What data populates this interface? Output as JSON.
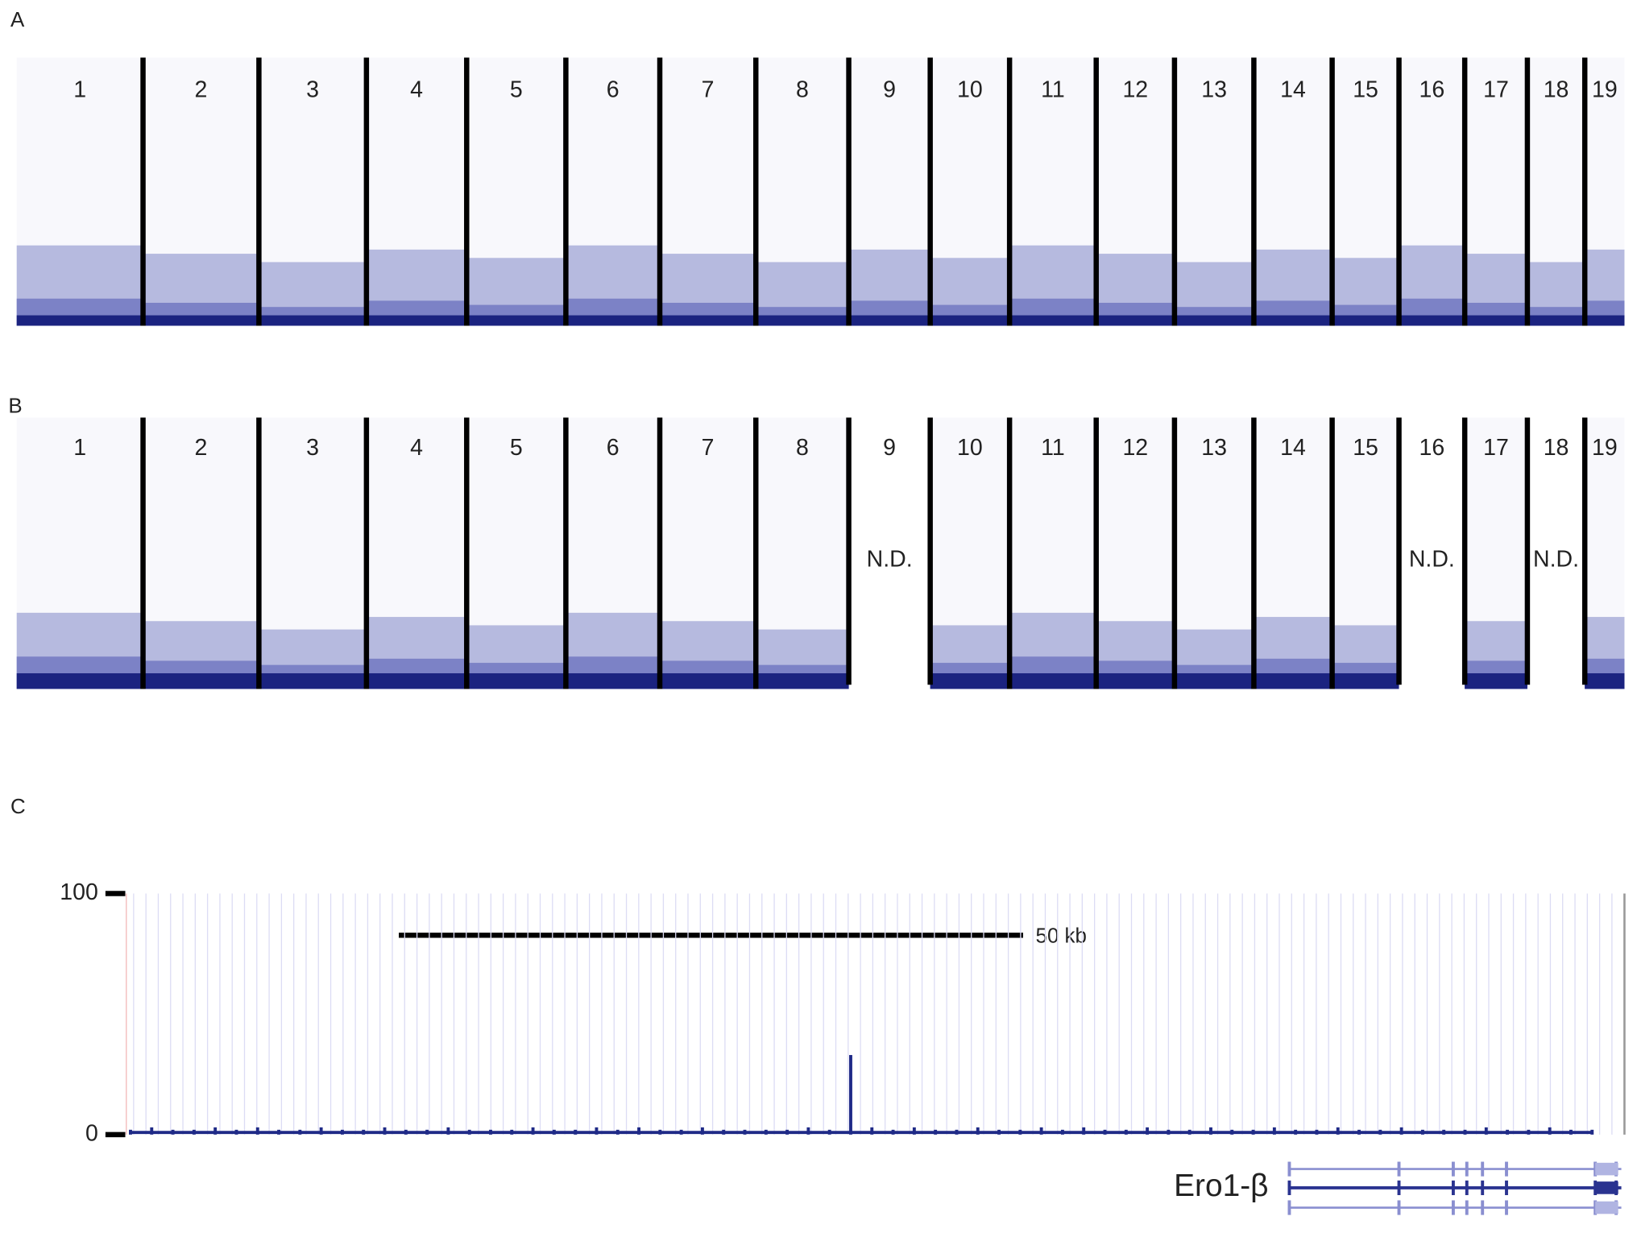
{
  "panels": [
    {
      "label": "A",
      "chromosomes": [
        {
          "label": "1"
        },
        {
          "label": "2"
        },
        {
          "label": "3"
        },
        {
          "label": "4"
        },
        {
          "label": "5"
        },
        {
          "label": "6"
        },
        {
          "label": "7"
        },
        {
          "label": "8"
        },
        {
          "label": "9"
        },
        {
          "label": "10"
        },
        {
          "label": "11"
        },
        {
          "label": "12"
        },
        {
          "label": "13"
        },
        {
          "label": "14"
        },
        {
          "label": "15"
        },
        {
          "label": "16"
        },
        {
          "label": "17"
        },
        {
          "label": "18"
        },
        {
          "label": "19"
        }
      ]
    },
    {
      "label": "B",
      "chromosomes": [
        {
          "label": "1"
        },
        {
          "label": "2"
        },
        {
          "label": "3"
        },
        {
          "label": "4"
        },
        {
          "label": "5"
        },
        {
          "label": "6"
        },
        {
          "label": "7"
        },
        {
          "label": "8"
        },
        {
          "label": "9",
          "note": "N.D."
        },
        {
          "label": "10"
        },
        {
          "label": "11"
        },
        {
          "label": "12"
        },
        {
          "label": "13"
        },
        {
          "label": "14"
        },
        {
          "label": "15"
        },
        {
          "label": "16",
          "note": "N.D."
        },
        {
          "label": "17"
        },
        {
          "label": "18",
          "note": "N.D."
        },
        {
          "label": "19"
        }
      ]
    }
  ],
  "chart_data": {
    "type": "track",
    "panel_label": "C",
    "ylim": [
      0,
      100
    ],
    "yticks": [
      0,
      100
    ],
    "color": "#1f2a87",
    "scale_bar": "50 kb",
    "gene": "Ero1-β",
    "values": [
      2,
      3,
      2,
      2,
      3,
      2,
      3,
      2,
      2,
      3,
      2,
      2,
      3,
      2,
      2,
      3,
      2,
      2,
      2,
      3,
      2,
      2,
      3,
      2,
      3,
      2,
      2,
      3,
      2,
      2,
      2,
      2,
      3,
      2,
      33,
      3,
      2,
      3,
      2,
      2,
      3,
      2,
      2,
      3,
      2,
      3,
      2,
      2,
      3,
      2,
      2,
      3,
      2,
      2,
      3,
      2,
      2,
      3,
      2,
      2,
      3,
      2,
      2,
      2,
      3,
      2,
      2,
      3,
      2,
      2
    ]
  }
}
